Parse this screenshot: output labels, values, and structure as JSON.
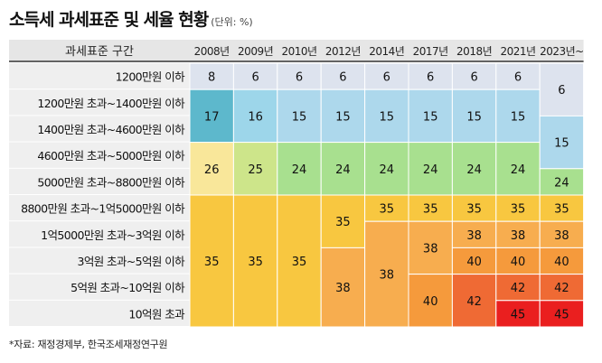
{
  "title": "소득세 과세표준 및 세율 현황",
  "unit": "(단위: %)",
  "source": "*자료: 재정경제부, 한국조세재정연구원",
  "chart_data": {
    "type": "table",
    "row_header": "과세표준 구간",
    "years": [
      "2008년",
      "2009년",
      "2010년",
      "2012년",
      "2014년",
      "2017년",
      "2018년",
      "2021년",
      "2023년~"
    ],
    "brackets": [
      "1200만원 이하",
      "1200만원 초과~1400만원 이하",
      "1400만원 초과~4600만원 이하",
      "4600만원 초과~5000만원 이하",
      "5000만원 초과~8800만원 이하",
      "8800만원 초과~1억5000만원 이하",
      "1억5000만원 초과~3억원 이하",
      "3억원 초과~5억원 이하",
      "5억원 초과~10억원 이하",
      "10억원 초과"
    ],
    "rates_by_year": [
      {
        "year": "2008년",
        "cells": [
          {
            "from": 0,
            "to": 0,
            "rate": 8,
            "color": "#dde3ee"
          },
          {
            "from": 1,
            "to": 2,
            "rate": 17,
            "color": "#5db8cc"
          },
          {
            "from": 3,
            "to": 4,
            "rate": 26,
            "color": "#f9e79a"
          },
          {
            "from": 5,
            "to": 9,
            "rate": 35,
            "color": "#f8c740"
          }
        ]
      },
      {
        "year": "2009년",
        "cells": [
          {
            "from": 0,
            "to": 0,
            "rate": 6,
            "color": "#dde3ee"
          },
          {
            "from": 1,
            "to": 2,
            "rate": 16,
            "color": "#9dd6ea"
          },
          {
            "from": 3,
            "to": 4,
            "rate": 25,
            "color": "#cde58a"
          },
          {
            "from": 5,
            "to": 9,
            "rate": 35,
            "color": "#f8c740"
          }
        ]
      },
      {
        "year": "2010년",
        "cells": [
          {
            "from": 0,
            "to": 0,
            "rate": 6,
            "color": "#dde3ee"
          },
          {
            "from": 1,
            "to": 2,
            "rate": 15,
            "color": "#add8ec"
          },
          {
            "from": 3,
            "to": 4,
            "rate": 24,
            "color": "#a8e08f"
          },
          {
            "from": 5,
            "to": 9,
            "rate": 35,
            "color": "#f8c740"
          }
        ]
      },
      {
        "year": "2012년",
        "cells": [
          {
            "from": 0,
            "to": 0,
            "rate": 6,
            "color": "#dde3ee"
          },
          {
            "from": 1,
            "to": 2,
            "rate": 15,
            "color": "#add8ec"
          },
          {
            "from": 3,
            "to": 4,
            "rate": 24,
            "color": "#a8e08f"
          },
          {
            "from": 5,
            "to": 6,
            "rate": 35,
            "color": "#f8c740"
          },
          {
            "from": 7,
            "to": 9,
            "rate": 38,
            "color": "#f7ad4f"
          }
        ]
      },
      {
        "year": "2014년",
        "cells": [
          {
            "from": 0,
            "to": 0,
            "rate": 6,
            "color": "#dde3ee"
          },
          {
            "from": 1,
            "to": 2,
            "rate": 15,
            "color": "#add8ec"
          },
          {
            "from": 3,
            "to": 4,
            "rate": 24,
            "color": "#a8e08f"
          },
          {
            "from": 5,
            "to": 5,
            "rate": 35,
            "color": "#f8c740"
          },
          {
            "from": 6,
            "to": 9,
            "rate": 38,
            "color": "#f7ad4f"
          }
        ]
      },
      {
        "year": "2017년",
        "cells": [
          {
            "from": 0,
            "to": 0,
            "rate": 6,
            "color": "#dde3ee"
          },
          {
            "from": 1,
            "to": 2,
            "rate": 15,
            "color": "#add8ec"
          },
          {
            "from": 3,
            "to": 4,
            "rate": 24,
            "color": "#a8e08f"
          },
          {
            "from": 5,
            "to": 5,
            "rate": 35,
            "color": "#f8c740"
          },
          {
            "from": 6,
            "to": 7,
            "rate": 38,
            "color": "#f7ad4f"
          },
          {
            "from": 8,
            "to": 9,
            "rate": 40,
            "color": "#f59a3c"
          }
        ]
      },
      {
        "year": "2018년",
        "cells": [
          {
            "from": 0,
            "to": 0,
            "rate": 6,
            "color": "#dde3ee"
          },
          {
            "from": 1,
            "to": 2,
            "rate": 15,
            "color": "#add8ec"
          },
          {
            "from": 3,
            "to": 4,
            "rate": 24,
            "color": "#a8e08f"
          },
          {
            "from": 5,
            "to": 5,
            "rate": 35,
            "color": "#f8c740"
          },
          {
            "from": 6,
            "to": 6,
            "rate": 38,
            "color": "#f7ad4f"
          },
          {
            "from": 7,
            "to": 7,
            "rate": 40,
            "color": "#f59a3c"
          },
          {
            "from": 8,
            "to": 9,
            "rate": 42,
            "color": "#ef6a34"
          }
        ]
      },
      {
        "year": "2021년",
        "cells": [
          {
            "from": 0,
            "to": 0,
            "rate": 6,
            "color": "#dde3ee"
          },
          {
            "from": 1,
            "to": 2,
            "rate": 15,
            "color": "#add8ec"
          },
          {
            "from": 3,
            "to": 4,
            "rate": 24,
            "color": "#a8e08f"
          },
          {
            "from": 5,
            "to": 5,
            "rate": 35,
            "color": "#f8c740"
          },
          {
            "from": 6,
            "to": 6,
            "rate": 38,
            "color": "#f7ad4f"
          },
          {
            "from": 7,
            "to": 7,
            "rate": 40,
            "color": "#f59a3c"
          },
          {
            "from": 8,
            "to": 8,
            "rate": 42,
            "color": "#ef6a34"
          },
          {
            "from": 9,
            "to": 9,
            "rate": 45,
            "color": "#ea1f1f"
          }
        ]
      },
      {
        "year": "2023년~",
        "cells": [
          {
            "from": 0,
            "to": 1,
            "rate": 6,
            "color": "#dde3ee"
          },
          {
            "from": 2,
            "to": 3,
            "rate": 15,
            "color": "#add8ec"
          },
          {
            "from": 4,
            "to": 4,
            "rate": 24,
            "color": "#a8e08f"
          },
          {
            "from": 5,
            "to": 5,
            "rate": 35,
            "color": "#f8c740"
          },
          {
            "from": 6,
            "to": 6,
            "rate": 38,
            "color": "#f7ad4f"
          },
          {
            "from": 7,
            "to": 7,
            "rate": 40,
            "color": "#f59a3c"
          },
          {
            "from": 8,
            "to": 8,
            "rate": 42,
            "color": "#ef6a34"
          },
          {
            "from": 9,
            "to": 9,
            "rate": 45,
            "color": "#ea1f1f"
          }
        ]
      }
    ],
    "colors": {
      "header_bg": "#e6e6e6",
      "label_bg": "#efefef",
      "divider": "#ffffff"
    }
  }
}
